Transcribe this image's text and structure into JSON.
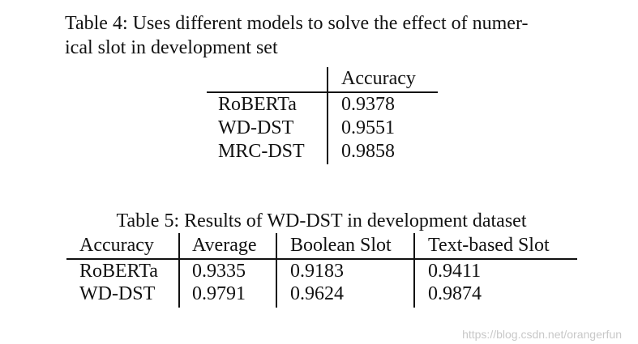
{
  "table4": {
    "caption_line1": "Table 4: Uses different models to solve the effect of numer-",
    "caption_line2": "ical slot in development set",
    "header": [
      "",
      "Accuracy"
    ],
    "rows": [
      [
        "RoBERTa",
        "0.9378"
      ],
      [
        "WD-DST",
        "0.9551"
      ],
      [
        "MRC-DST",
        "0.9858"
      ]
    ]
  },
  "table5": {
    "caption": "Table 5: Results of WD-DST in development dataset",
    "header": [
      "Accuracy",
      "Average",
      "Boolean Slot",
      "Text-based Slot"
    ],
    "rows": [
      [
        "RoBERTa",
        "0.9335",
        "0.9183",
        "0.9411"
      ],
      [
        "WD-DST",
        "0.9791",
        "0.9624",
        "0.9874"
      ]
    ]
  },
  "watermark": "https://blog.csdn.net/orangerfun"
}
